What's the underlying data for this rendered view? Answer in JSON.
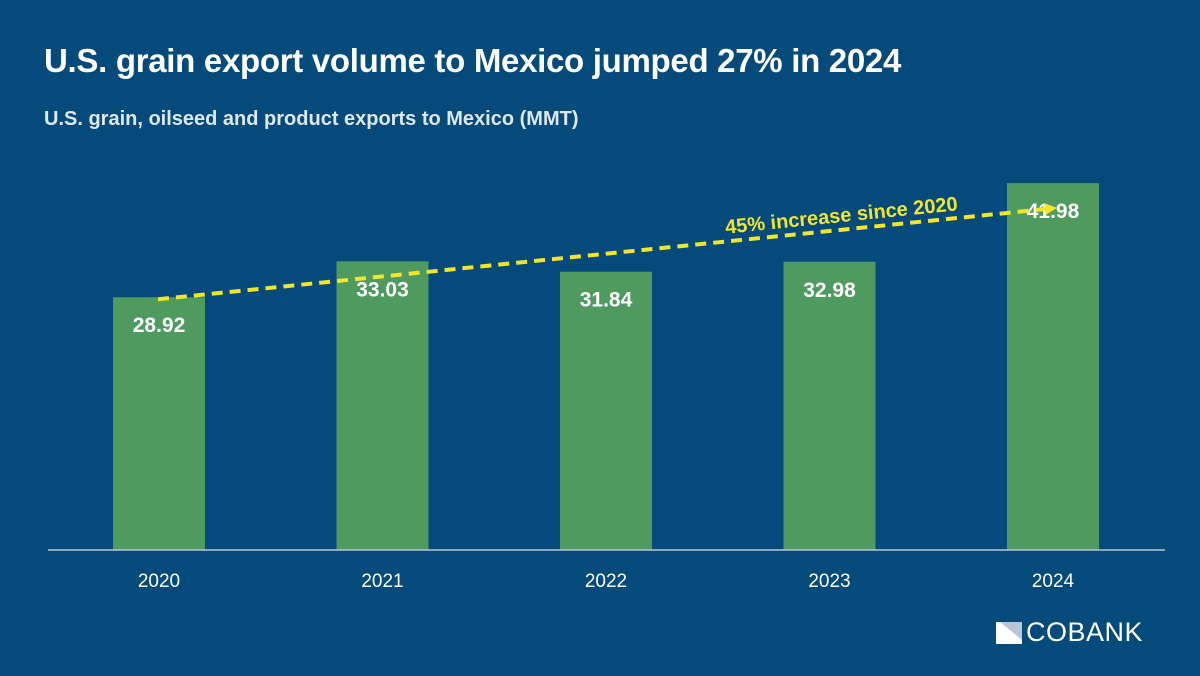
{
  "title": "U.S. grain export volume to Mexico jumped 27% in 2024",
  "subtitle": "U.S. grain, oilseed and product exports to Mexico (MMT)",
  "logo_text": "COBANK",
  "colors": {
    "background": "#044a7b",
    "bar": "#4e9a5f",
    "trend": "#f2e52a"
  },
  "chart_data": {
    "type": "bar",
    "title": "U.S. grain export volume to Mexico jumped 27% in 2024",
    "subtitle": "U.S. grain, oilseed and product exports to Mexico (MMT)",
    "xlabel": "",
    "ylabel": "MMT",
    "categories": [
      "2020",
      "2021",
      "2022",
      "2023",
      "2024"
    ],
    "values": [
      28.92,
      33.03,
      31.84,
      32.98,
      41.98
    ],
    "value_labels": [
      "28.92",
      "33.03",
      "31.84",
      "32.98",
      "41.98"
    ],
    "ylim": [
      0,
      48
    ],
    "grid": false,
    "annotation": {
      "text": "45% increase since 2020",
      "from": "2020",
      "to": "2024"
    }
  }
}
